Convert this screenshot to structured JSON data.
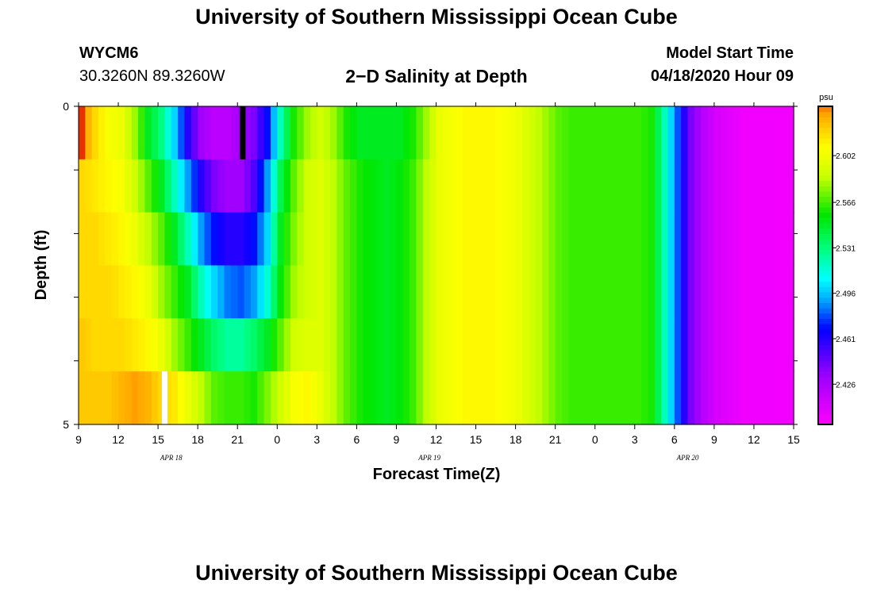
{
  "header": {
    "title": "University of Southern Mississippi Ocean Cube",
    "station_id": "WYCM6",
    "station_coords": "30.3260N 89.3260W",
    "chart_title": "2−D Salinity at Depth",
    "model_start_label": "Model Start Time",
    "model_start_value": "04/18/2020 Hour 09"
  },
  "footer": {
    "title": "University of Southern Mississippi Ocean Cube"
  },
  "chart_data": {
    "type": "heatmap",
    "title": "2−D Salinity at Depth",
    "xlabel": "Forecast Time(Z)",
    "ylabel": "Depth (ft)",
    "x_start_hour": 9,
    "x_end_hour": 63,
    "xticks": [
      "9",
      "12",
      "15",
      "18",
      "21",
      "0",
      "3",
      "6",
      "9",
      "12",
      "15",
      "18",
      "21",
      "0",
      "3",
      "6",
      "9",
      "12",
      "15"
    ],
    "date_labels": [
      {
        "label": "APR 18",
        "hour": 16
      },
      {
        "label": "APR 19",
        "hour": 35.5
      },
      {
        "label": "APR 20",
        "hour": 55
      }
    ],
    "ylim": [
      0,
      5
    ],
    "yticks": [
      "0",
      "5"
    ],
    "colorbar": {
      "unit": "psu",
      "vmin": 2.395,
      "vmax": 2.64,
      "ticks": [
        2.426,
        2.461,
        2.496,
        2.531,
        2.566,
        2.602
      ],
      "tick_labels": [
        "2.426",
        "2.461",
        "2.496",
        "2.531",
        "2.566",
        "2.602"
      ]
    },
    "depth_bands": 6,
    "times": [
      9,
      10,
      11,
      12,
      13,
      14,
      15,
      16,
      17,
      18,
      19,
      20,
      21,
      22,
      23,
      24,
      25,
      26,
      27,
      28,
      29,
      30,
      31,
      32,
      33,
      34,
      35,
      36,
      37,
      38,
      39,
      40,
      41,
      42,
      43,
      44,
      45,
      46,
      47,
      48,
      49,
      50,
      51,
      52,
      53,
      54,
      55,
      56,
      57,
      58,
      59,
      60,
      61,
      62,
      63
    ],
    "values": [
      [
        2.64,
        2.62,
        2.605,
        2.6,
        2.58,
        2.55,
        2.53,
        2.5,
        2.46,
        2.43,
        2.42,
        2.42,
        2.43,
        2.44,
        2.47,
        2.52,
        2.56,
        2.58,
        2.59,
        2.58,
        2.56,
        2.55,
        2.55,
        2.55,
        2.55,
        2.56,
        2.58,
        2.6,
        2.605,
        2.61,
        2.61,
        2.61,
        2.605,
        2.6,
        2.59,
        2.58,
        2.57,
        2.565,
        2.565,
        2.565,
        2.565,
        2.565,
        2.565,
        2.56,
        2.52,
        2.48,
        2.44,
        2.42,
        2.41,
        2.405,
        2.4,
        2.4,
        2.4,
        2.4,
        2.4
      ],
      [
        2.62,
        2.615,
        2.61,
        2.605,
        2.59,
        2.57,
        2.55,
        2.52,
        2.49,
        2.46,
        2.44,
        2.43,
        2.43,
        2.45,
        2.49,
        2.54,
        2.57,
        2.59,
        2.595,
        2.585,
        2.57,
        2.56,
        2.555,
        2.55,
        2.555,
        2.565,
        2.585,
        2.6,
        2.605,
        2.61,
        2.61,
        2.61,
        2.605,
        2.6,
        2.59,
        2.58,
        2.57,
        2.565,
        2.565,
        2.565,
        2.565,
        2.565,
        2.565,
        2.56,
        2.52,
        2.48,
        2.44,
        2.42,
        2.41,
        2.405,
        2.4,
        2.4,
        2.4,
        2.4,
        2.4
      ],
      [
        2.62,
        2.62,
        2.615,
        2.61,
        2.6,
        2.585,
        2.57,
        2.55,
        2.52,
        2.49,
        2.47,
        2.46,
        2.46,
        2.47,
        2.5,
        2.55,
        2.575,
        2.59,
        2.595,
        2.585,
        2.57,
        2.56,
        2.555,
        2.55,
        2.555,
        2.565,
        2.585,
        2.6,
        2.605,
        2.61,
        2.61,
        2.61,
        2.605,
        2.6,
        2.59,
        2.58,
        2.57,
        2.565,
        2.565,
        2.565,
        2.565,
        2.565,
        2.565,
        2.56,
        2.52,
        2.48,
        2.44,
        2.42,
        2.41,
        2.405,
        2.4,
        2.4,
        2.4,
        2.4,
        2.4
      ],
      [
        2.62,
        2.62,
        2.62,
        2.615,
        2.61,
        2.6,
        2.58,
        2.565,
        2.55,
        2.52,
        2.5,
        2.485,
        2.48,
        2.49,
        2.515,
        2.555,
        2.58,
        2.59,
        2.595,
        2.585,
        2.57,
        2.56,
        2.555,
        2.55,
        2.555,
        2.565,
        2.585,
        2.6,
        2.605,
        2.61,
        2.61,
        2.61,
        2.605,
        2.6,
        2.59,
        2.58,
        2.57,
        2.565,
        2.565,
        2.565,
        2.565,
        2.565,
        2.565,
        2.56,
        2.52,
        2.48,
        2.44,
        2.42,
        2.41,
        2.405,
        2.4,
        2.4,
        2.4,
        2.4,
        2.4
      ],
      [
        2.625,
        2.62,
        2.62,
        2.62,
        2.615,
        2.61,
        2.6,
        2.58,
        2.565,
        2.55,
        2.535,
        2.525,
        2.525,
        2.535,
        2.55,
        2.57,
        2.59,
        2.595,
        2.595,
        2.585,
        2.57,
        2.56,
        2.555,
        2.55,
        2.555,
        2.565,
        2.585,
        2.6,
        2.605,
        2.61,
        2.61,
        2.61,
        2.605,
        2.6,
        2.59,
        2.58,
        2.57,
        2.565,
        2.565,
        2.565,
        2.565,
        2.565,
        2.565,
        2.56,
        2.52,
        2.48,
        2.44,
        2.42,
        2.41,
        2.405,
        2.4,
        2.4,
        2.4,
        2.4,
        2.4
      ],
      [
        2.625,
        2.625,
        2.625,
        2.63,
        2.635,
        2.63,
        2.62,
        2.615,
        2.6,
        2.585,
        2.57,
        2.565,
        2.565,
        2.56,
        2.575,
        2.59,
        2.605,
        2.61,
        2.6,
        2.585,
        2.57,
        2.56,
        2.555,
        2.55,
        2.555,
        2.565,
        2.585,
        2.6,
        2.605,
        2.61,
        2.61,
        2.61,
        2.605,
        2.6,
        2.59,
        2.58,
        2.57,
        2.565,
        2.565,
        2.565,
        2.565,
        2.565,
        2.565,
        2.56,
        2.52,
        2.48,
        2.44,
        2.42,
        2.41,
        2.405,
        2.4,
        2.4,
        2.4,
        2.4,
        2.4
      ]
    ],
    "missing_cells": [
      {
        "depth_band": 0,
        "hour": 21.4,
        "fill": "#000000"
      },
      {
        "depth_band": 5,
        "hour": 15.5,
        "fill": "#ffffff"
      }
    ]
  }
}
